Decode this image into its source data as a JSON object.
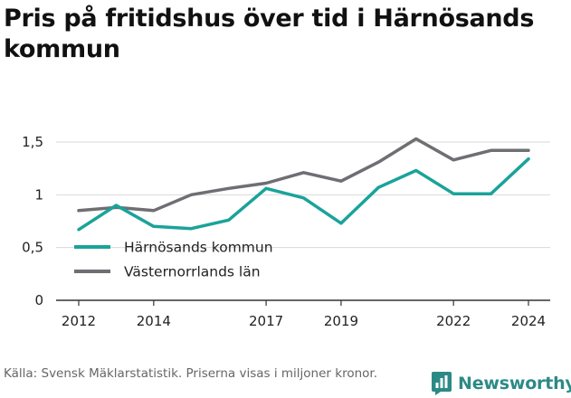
{
  "title": "Pris på fritidshus över tid i Härnösands kommun",
  "source": "Källa: Svensk Mäklarstatistik. Priserna visas i miljoner kronor.",
  "brand": {
    "name": "Newsworthy",
    "icon": "bar-chart-logo-icon",
    "color": "#2c8a86"
  },
  "chart_data": {
    "type": "line",
    "title": "Pris på fritidshus över tid i Härnösands kommun",
    "xlabel": "",
    "ylabel": "",
    "x": [
      2012,
      2013,
      2014,
      2015,
      2016,
      2017,
      2018,
      2019,
      2020,
      2021,
      2022,
      2023,
      2024
    ],
    "x_ticks": [
      "2012",
      "2014",
      "2017",
      "2019",
      "2022",
      "2024"
    ],
    "y_ticks": [
      "0",
      "0,5",
      "1",
      "1,5"
    ],
    "y_tick_values": [
      0,
      0.5,
      1,
      1.5
    ],
    "ylim": [
      0,
      1.5
    ],
    "xlim": [
      2012,
      2024
    ],
    "grid": "horizontal",
    "legend_position": "left",
    "series": [
      {
        "name": "Härnösands kommun",
        "color": "#1aa39a",
        "values": [
          0.67,
          0.9,
          0.7,
          0.68,
          0.76,
          1.06,
          0.97,
          0.73,
          1.07,
          1.23,
          1.01,
          1.01,
          1.34
        ]
      },
      {
        "name": "Västernorrlands län",
        "color": "#6e6e73",
        "values": [
          0.85,
          0.88,
          0.85,
          1.0,
          1.06,
          1.11,
          1.21,
          1.13,
          1.31,
          1.53,
          1.33,
          1.42,
          1.42
        ]
      }
    ]
  }
}
